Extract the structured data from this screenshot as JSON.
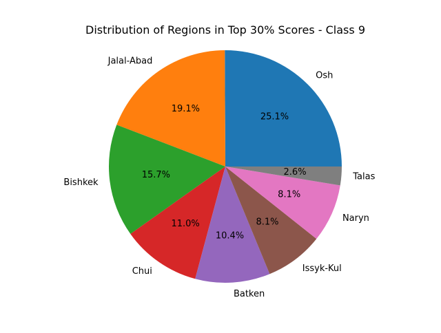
{
  "chart_data": {
    "type": "pie",
    "title": "Distribution of Regions in Top 30% Scores - Class 9",
    "slices": [
      {
        "label": "Osh",
        "value": 25.1,
        "pct_text": "25.1%",
        "color": "#1f77b4"
      },
      {
        "label": "Jalal-Abad",
        "value": 19.1,
        "pct_text": "19.1%",
        "color": "#ff7f0e"
      },
      {
        "label": "Bishkek",
        "value": 15.7,
        "pct_text": "15.7%",
        "color": "#2ca02c"
      },
      {
        "label": "Chui",
        "value": 11.0,
        "pct_text": "11.0%",
        "color": "#d62728"
      },
      {
        "label": "Batken",
        "value": 10.4,
        "pct_text": "10.4%",
        "color": "#9467bd"
      },
      {
        "label": "Issyk-Kul",
        "value": 8.1,
        "pct_text": "8.1%",
        "color": "#8c564b"
      },
      {
        "label": "Naryn",
        "value": 8.1,
        "pct_text": "8.1%",
        "color": "#e377c2"
      },
      {
        "label": "Talas",
        "value": 2.6,
        "pct_text": "2.6%",
        "color": "#7f7f7f"
      }
    ],
    "start_angle_deg": 0,
    "direction": "counterclockwise"
  }
}
